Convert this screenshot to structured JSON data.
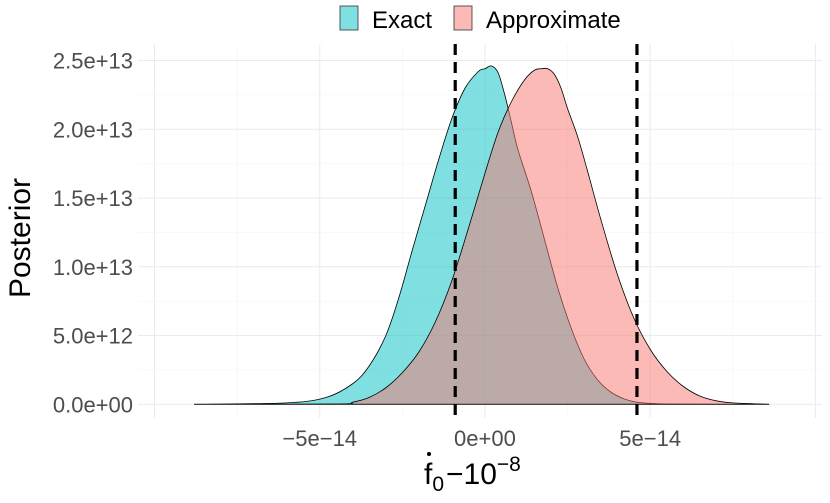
{
  "chart_data": {
    "type": "area",
    "xlabel_parts": [
      "f",
      "0",
      "−10",
      "−8"
    ],
    "ylabel": "Posterior",
    "xlim": [
      -1.05e-13,
      1.02e-13
    ],
    "ylim": [
      -1000000000000.0,
      26200000000000.0
    ],
    "x_ticks": [
      {
        "value": -5e-14,
        "label": "−5e−14"
      },
      {
        "value": 0,
        "label": "0e+00"
      },
      {
        "value": 5e-14,
        "label": "5e−14"
      }
    ],
    "y_ticks": [
      {
        "value": 0,
        "label": "0.0e+00"
      },
      {
        "value": 5000000000000.0,
        "label": "5.0e+12"
      },
      {
        "value": 10000000000000.0,
        "label": "1.0e+13"
      },
      {
        "value": 15000000000000.0,
        "label": "1.5e+13"
      },
      {
        "value": 20000000000000.0,
        "label": "2.0e+13"
      },
      {
        "value": 25000000000000.0,
        "label": "2.5e+13"
      }
    ],
    "vlines": [
      -9e-15,
      4.6e-14
    ],
    "legend_position": "top",
    "series": [
      {
        "name": "Exact",
        "color": "#00BFC4",
        "x": [
          -8.8e-14,
          -6e-14,
          -4.8e-14,
          -4e-14,
          -3.5e-14,
          -3e-14,
          -2.6e-14,
          -2.2e-14,
          -1.8e-14,
          -1.4e-14,
          -1e-14,
          -6e-15,
          -2e-15,
          0,
          2e-15,
          4e-15,
          6e-15,
          8e-15,
          1e-14,
          1.4e-14,
          1.8e-14,
          2.2e-14,
          2.6e-14,
          3e-14,
          3.4e-14,
          3.8e-14,
          4.2e-14,
          4.6e-14,
          5e-14,
          5.5e-14,
          6.5e-14,
          8.6e-14
        ],
        "y": [
          0,
          100000000000.0,
          500000000000.0,
          1500000000000.0,
          2800000000000.0,
          5000000000000.0,
          7800000000000.0,
          11200000000000.0,
          14500000000000.0,
          17800000000000.0,
          20800000000000.0,
          23000000000000.0,
          24200000000000.0,
          24400000000000.0,
          24600000000000.0,
          24100000000000.0,
          22500000000000.0,
          20500000000000.0,
          18500000000000.0,
          15500000000000.0,
          12000000000000.0,
          8500000000000.0,
          5600000000000.0,
          3300000000000.0,
          1800000000000.0,
          900000000000.0,
          400000000000.0,
          150000000000.0,
          60000000000.0,
          20000000000.0,
          5000000000.0,
          0
        ]
      },
      {
        "name": "Approximate",
        "color": "#F8766D",
        "x": [
          -8.8e-14,
          -4.5e-14,
          -4e-14,
          -3.5e-14,
          -3e-14,
          -2.5e-14,
          -2e-14,
          -1.5e-14,
          -1e-14,
          -5e-15,
          0,
          4e-15,
          8e-15,
          1.2e-14,
          1.5e-14,
          1.7e-14,
          1.9e-14,
          2.1e-14,
          2.3e-14,
          2.5e-14,
          2.8e-14,
          3.1e-14,
          3.5e-14,
          4e-14,
          4.5e-14,
          5e-14,
          5.5e-14,
          6e-14,
          6.5e-14,
          7e-14,
          7.5e-14,
          8.6e-14
        ],
        "y": [
          0,
          20000000000.0,
          150000000000.0,
          500000000000.0,
          1200000000000.0,
          2300000000000.0,
          3800000000000.0,
          6000000000000.0,
          9000000000000.0,
          12800000000000.0,
          16800000000000.0,
          19800000000000.0,
          22000000000000.0,
          23600000000000.0,
          24300000000000.0,
          24400000000000.0,
          24400000000000.0,
          24000000000000.0,
          23000000000000.0,
          21500000000000.0,
          19500000000000.0,
          17000000000000.0,
          13500000000000.0,
          9500000000000.0,
          6300000000000.0,
          4000000000000.0,
          2400000000000.0,
          1300000000000.0,
          600000000000.0,
          250000000000.0,
          100000000000.0,
          0
        ]
      }
    ]
  }
}
